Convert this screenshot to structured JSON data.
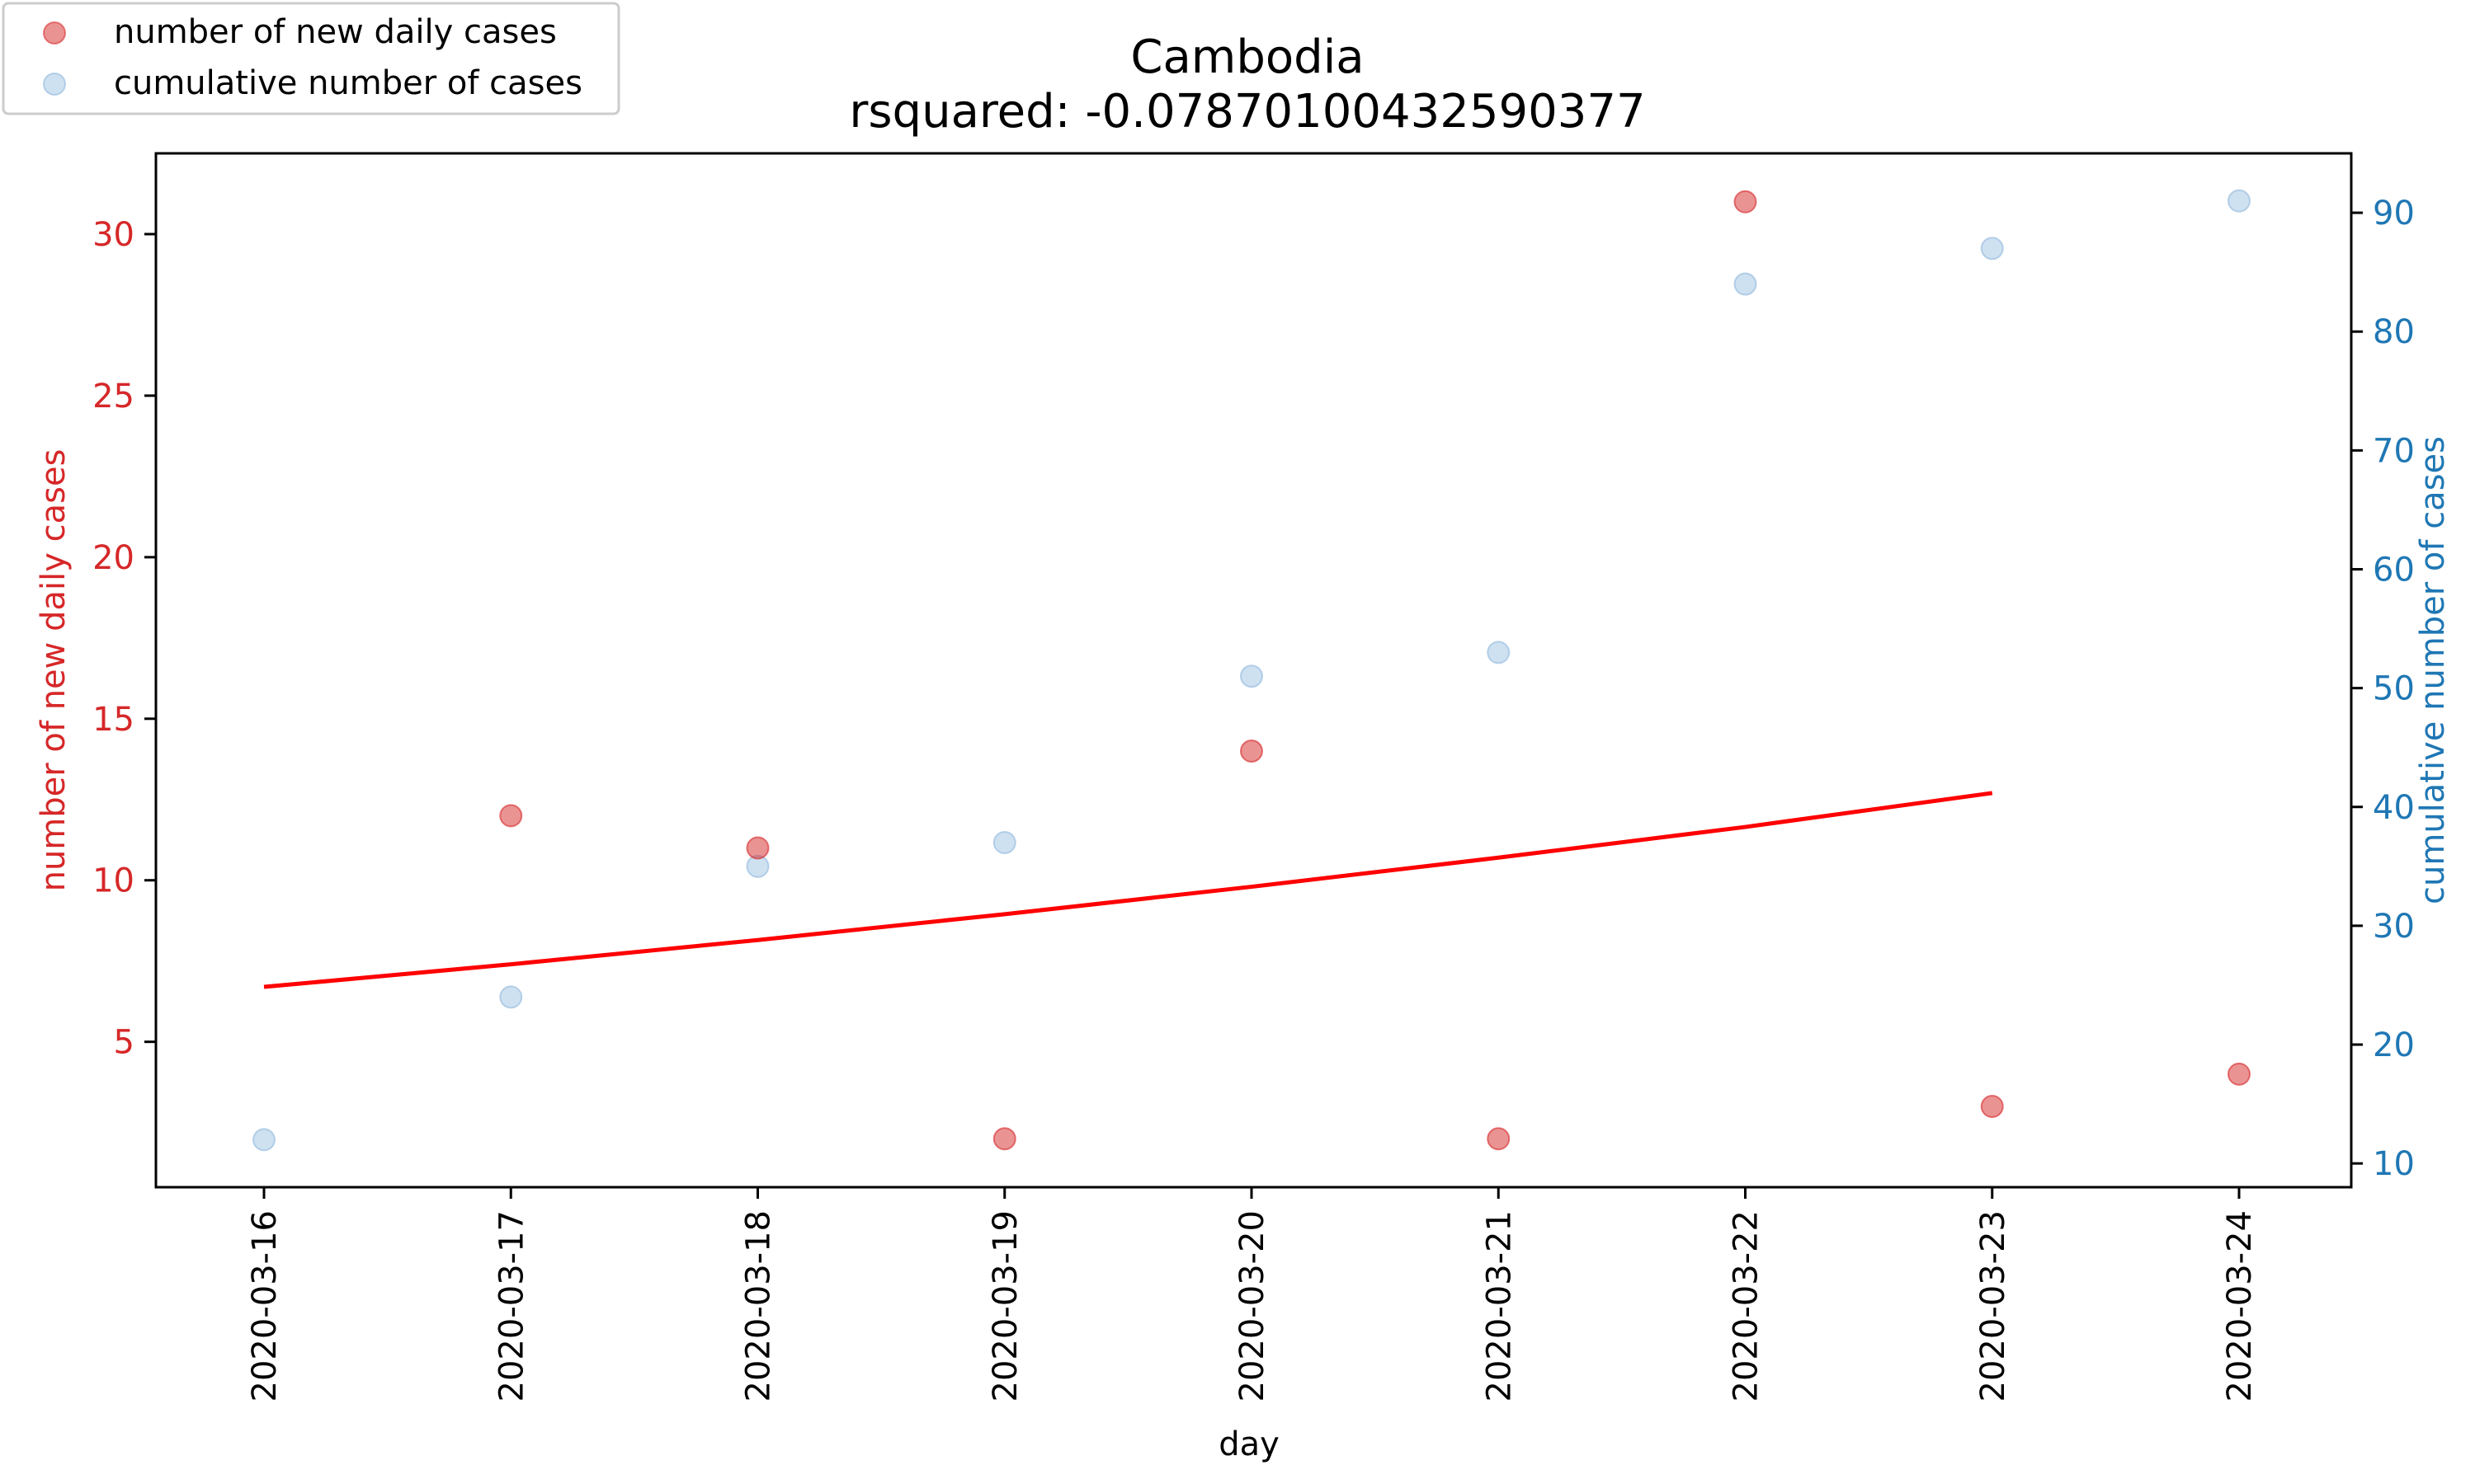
{
  "chart_data": {
    "type": "scatter",
    "title": "Cambodia",
    "subtitle": "rsquared: -0.07870100432590377",
    "xlabel": "day",
    "categories": [
      "2020-03-16",
      "2020-03-17",
      "2020-03-18",
      "2020-03-19",
      "2020-03-20",
      "2020-03-21",
      "2020-03-22",
      "2020-03-23",
      "2020-03-24"
    ],
    "y_left": {
      "label": "number of new daily cases",
      "ylim": [
        0.5,
        32.5
      ],
      "ticks": [
        5,
        10,
        15,
        20,
        25,
        30
      ],
      "color": "#d62728"
    },
    "y_right": {
      "label": "cumulative number of cases",
      "ylim": [
        8,
        95
      ],
      "ticks": [
        10,
        20,
        30,
        40,
        50,
        60,
        70,
        80,
        90
      ],
      "color": "#1f77b4"
    },
    "series": [
      {
        "name": "number of new daily cases",
        "axis": "left",
        "type": "scatter",
        "color": "#d62728",
        "values": [
          null,
          12,
          11,
          2,
          14,
          2,
          31,
          3,
          4
        ]
      },
      {
        "name": "cumulative number of cases",
        "axis": "right",
        "type": "scatter",
        "color": "#a6c8e6",
        "values": [
          12,
          24,
          35,
          37,
          51,
          53,
          84,
          87,
          91
        ]
      },
      {
        "axis": "left",
        "type": "line",
        "color": "#ff0000",
        "values": [
          6.7,
          7.4,
          8.15,
          8.95,
          9.8,
          10.7,
          11.65,
          12.7,
          null
        ]
      }
    ],
    "legend": "top-left",
    "grid": false
  }
}
